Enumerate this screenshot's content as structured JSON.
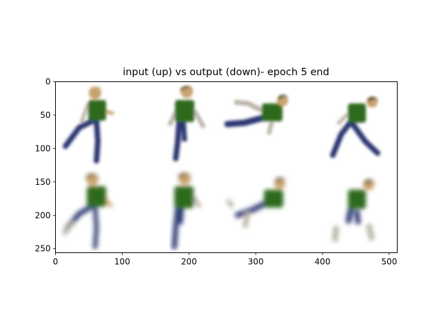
{
  "chart_data": {
    "type": "image",
    "title": "input (up) vs output (down)- epoch 5 end",
    "xlim": [
      0,
      512
    ],
    "ylim": [
      256,
      0
    ],
    "x_ticks": [
      0,
      100,
      200,
      300,
      400,
      500
    ],
    "y_ticks": [
      0,
      50,
      100,
      150,
      200,
      250
    ],
    "grid": false,
    "image_grid": {
      "rows": 2,
      "cols": 4,
      "tile_size": 128
    },
    "tiles": [
      {
        "row": 0,
        "col": 0,
        "label": "input"
      },
      {
        "row": 0,
        "col": 1,
        "label": "input"
      },
      {
        "row": 0,
        "col": 2,
        "label": "input"
      },
      {
        "row": 0,
        "col": 3,
        "label": "input"
      },
      {
        "row": 1,
        "col": 0,
        "label": "output"
      },
      {
        "row": 1,
        "col": 1,
        "label": "output"
      },
      {
        "row": 1,
        "col": 2,
        "label": "output"
      },
      {
        "row": 1,
        "col": 3,
        "label": "output"
      }
    ],
    "colors": {
      "skin": "#c9a36e",
      "hair": "#3a3020",
      "shirt": "#2f6a1e",
      "pants": "#2a3470",
      "shadow": "#b9b3a6"
    }
  }
}
